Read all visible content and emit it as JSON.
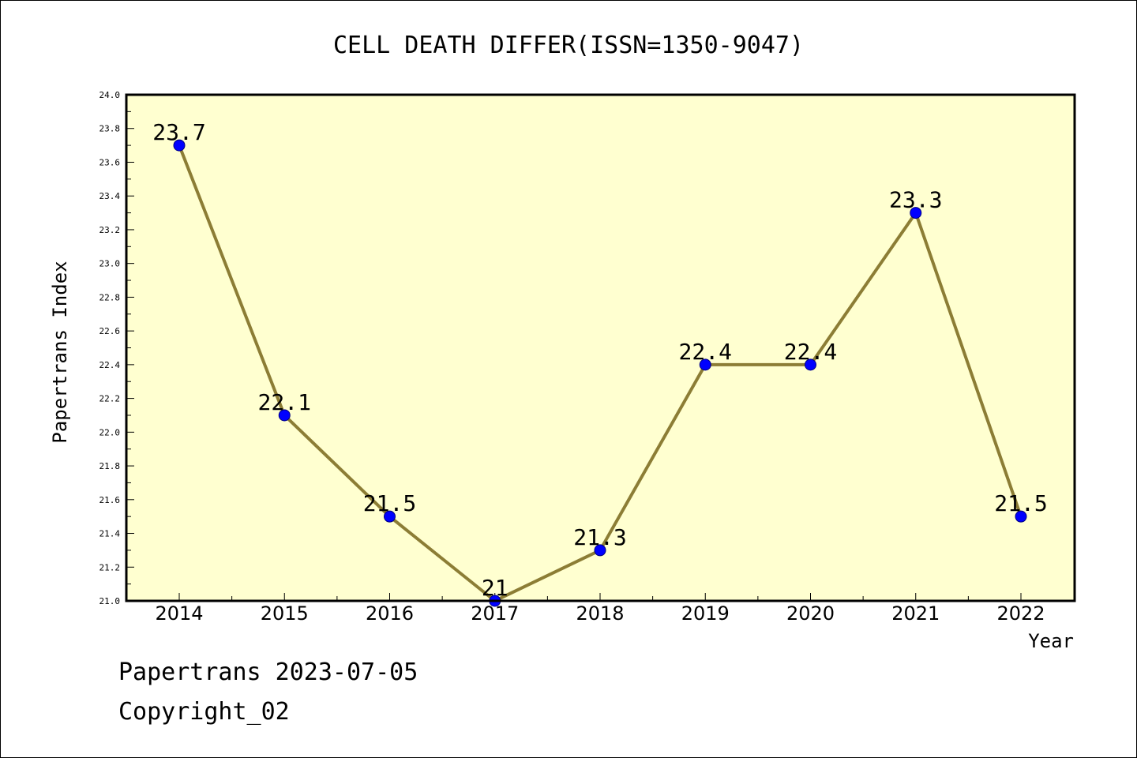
{
  "chart_data": {
    "type": "line",
    "title": "CELL DEATH DIFFER(ISSN=1350-9047)",
    "xlabel": "Year",
    "ylabel": "Papertrans Index",
    "categories": [
      "2014",
      "2015",
      "2016",
      "2017",
      "2018",
      "2019",
      "2020",
      "2021",
      "2022"
    ],
    "series": [
      {
        "values": [
          23.7,
          22.1,
          21.5,
          21.0,
          21.3,
          22.4,
          22.4,
          23.3,
          21.5
        ],
        "labels": [
          "23.7",
          "22.1",
          "21.5",
          "21",
          "21.3",
          "22.4",
          "22.4",
          "23.3",
          "21.5"
        ]
      }
    ],
    "ylim": [
      21.0,
      24.0
    ],
    "yticks": [
      "21.0",
      "21.2",
      "21.4",
      "21.6",
      "21.8",
      "22.0",
      "22.2",
      "22.4",
      "22.6",
      "22.8",
      "23.0",
      "23.2",
      "23.4",
      "23.6",
      "23.8",
      "24.0"
    ],
    "grid": false,
    "colors": {
      "plot_background": "#ffffd0",
      "line": "#8c7d35",
      "marker": "#0000ff",
      "marker_edge": "#000080"
    }
  },
  "footer": {
    "line1": "Papertrans 2023-07-05",
    "line2": "Copyright_02"
  }
}
